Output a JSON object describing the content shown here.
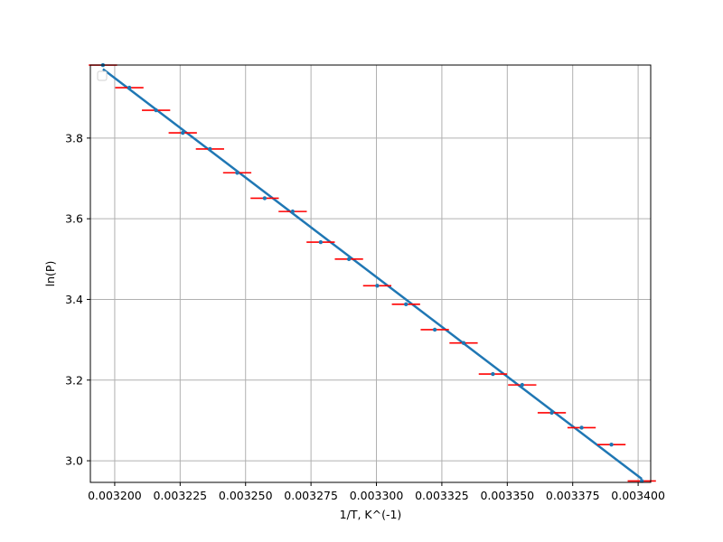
{
  "chart_data": {
    "type": "scatter",
    "title": "",
    "xlabel": "1/T, K^(-1)",
    "ylabel": "ln(P)",
    "xlim": [
      0.0031907,
      0.0034048
    ],
    "ylim": [
      2.9464,
      3.9811
    ],
    "grid": true,
    "legend": {
      "placement": "upper-left",
      "entries": []
    },
    "x_ticks": [
      0.0032,
      0.003225,
      0.00325,
      0.003275,
      0.0033,
      0.003325,
      0.00335,
      0.003375,
      0.0034
    ],
    "x_tick_labels": [
      "0.003200",
      "0.003225",
      "0.003250",
      "0.003275",
      "0.003300",
      "0.003325",
      "0.003350",
      "0.003375",
      "0.003400"
    ],
    "y_ticks": [
      3.0,
      3.2,
      3.4,
      3.6,
      3.8
    ],
    "y_tick_labels": [
      "3.0",
      "3.2",
      "3.4",
      "3.6",
      "3.8"
    ],
    "colors": {
      "points": "#1f77b4",
      "fit": "#1f77b4",
      "error_bars": "#ff0000",
      "grid": "#b0b0b0"
    },
    "series": [
      {
        "kind": "points_with_x_error",
        "x": [
          0.0031955,
          0.0032056,
          0.0032158,
          0.003226,
          0.0032364,
          0.0032468,
          0.0032573,
          0.003268,
          0.0032787,
          0.0032895,
          0.0033003,
          0.0033113,
          0.0033223,
          0.0033333,
          0.0033445,
          0.0033557,
          0.003367,
          0.0033784,
          0.0033898,
          0.0034014
        ],
        "y": [
          3.981,
          3.925,
          3.869,
          3.813,
          3.773,
          3.714,
          3.651,
          3.618,
          3.542,
          3.5,
          3.434,
          3.388,
          3.325,
          3.292,
          3.215,
          3.188,
          3.119,
          3.082,
          3.04,
          2.95
        ],
        "x_error": [
          5.4e-06,
          5.4e-06,
          5.4e-06,
          5.4e-06,
          5.4e-06,
          5.4e-06,
          5.4e-06,
          5.4e-06,
          5.4e-06,
          5.4e-06,
          5.4e-06,
          5.4e-06,
          5.4e-06,
          5.4e-06,
          5.4e-06,
          5.4e-06,
          5.4e-06,
          5.4e-06,
          5.4e-06,
          5.4e-06
        ]
      },
      {
        "kind": "fit_line",
        "x": [
          0.0031955,
          0.0034014
        ],
        "y": [
          3.971,
          2.955
        ]
      }
    ]
  }
}
